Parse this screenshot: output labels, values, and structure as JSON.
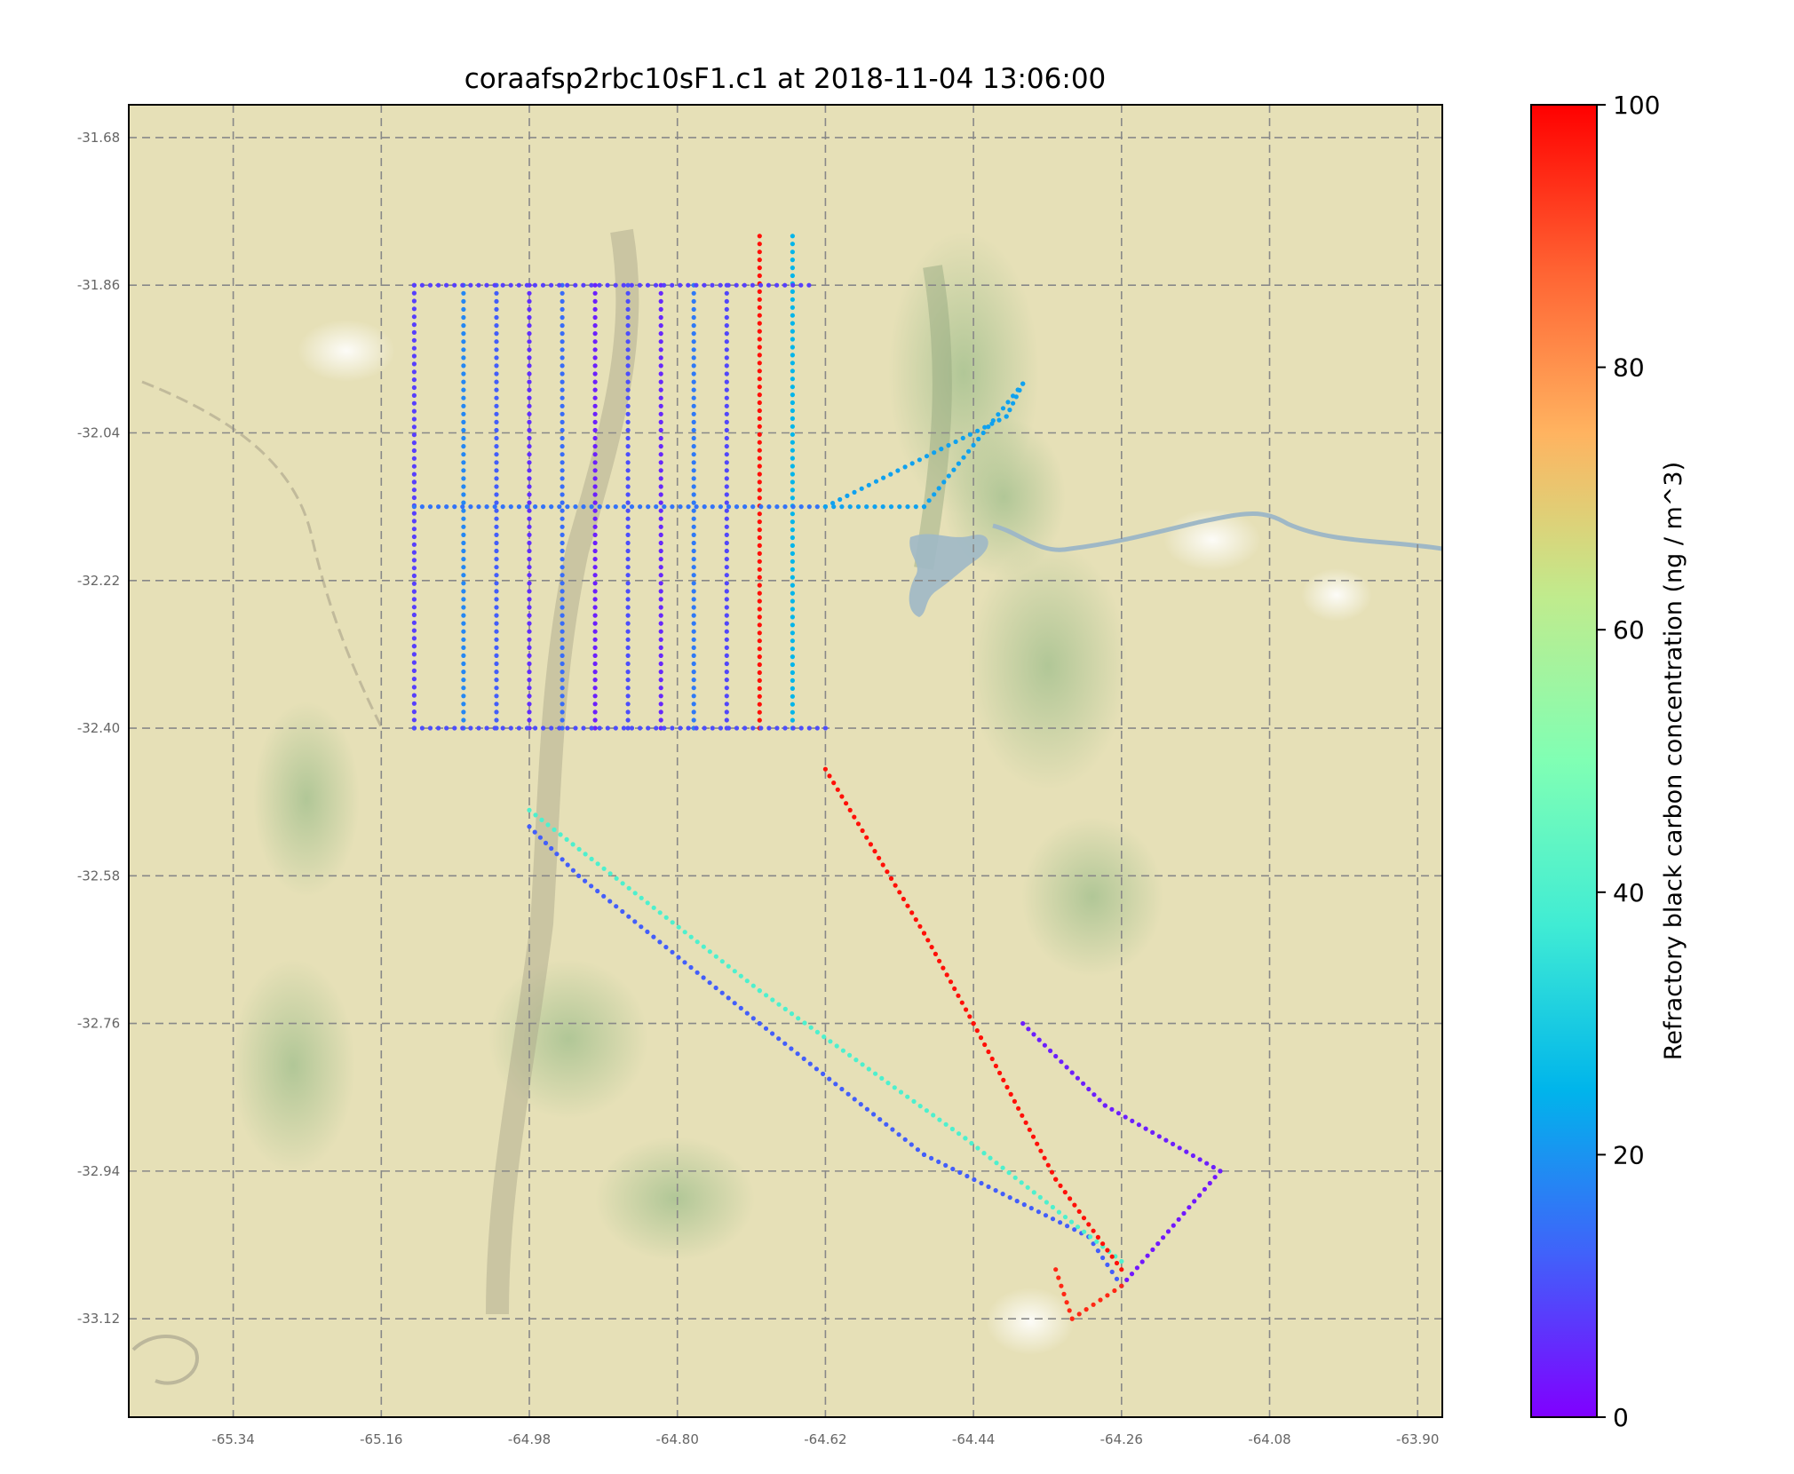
{
  "figure": {
    "title": "coraafsp2rbc10sF1.c1 at 2018-11-04 13:06:00"
  },
  "map": {
    "x_ticks": [
      "-65.34",
      "-65.16",
      "-64.98",
      "-64.80",
      "-64.62",
      "-64.44",
      "-64.26",
      "-64.08",
      "-63.90"
    ],
    "y_ticks": [
      "-31.68",
      "-31.86",
      "-32.04",
      "-32.22",
      "-32.40",
      "-32.58",
      "-32.76",
      "-32.94",
      "-33.12"
    ],
    "lon_range": [
      -65.467,
      -63.87
    ],
    "lat_range": [
      -31.64,
      -33.24
    ],
    "background": "terrain basemap with river and reservoir",
    "grid": "dashed gray"
  },
  "colorbar": {
    "label": "Refractory black carbon concentration (ng / m^3)",
    "min": 0,
    "max": 100,
    "ticks": [
      "100",
      "80",
      "60",
      "40",
      "20",
      "0"
    ],
    "colormap": "rainbow",
    "colors": [
      "#8000ff",
      "#4062fa",
      "#00b5eb",
      "#40ecd4",
      "#80ffb4",
      "#c0eb8d",
      "#ffb360",
      "#ff6232",
      "#ff0000"
    ]
  },
  "chart_data": {
    "type": "scatter",
    "title": "coraafsp2rbc10sF1.c1 at 2018-11-04 13:06:00",
    "xlabel": "",
    "ylabel": "",
    "xlim": [
      -65.467,
      -63.87
    ],
    "ylim": [
      -33.24,
      -31.64
    ],
    "colorbar_label": "Refractory black carbon concentration (ng / m^3)",
    "clim": [
      0,
      100
    ],
    "tracks": [
      {
        "lon": [
          -65.12,
          -65.12,
          -65.12,
          -65.12
        ],
        "lat": [
          -31.86,
          -32.1,
          -32.3,
          -32.4
        ],
        "c": 8
      },
      {
        "lon": [
          -65.06,
          -65.06
        ],
        "lat": [
          -31.86,
          -32.4
        ],
        "c": 18
      },
      {
        "lon": [
          -65.02,
          -65.02
        ],
        "lat": [
          -31.86,
          -32.4
        ],
        "c": 12
      },
      {
        "lon": [
          -64.98,
          -64.98
        ],
        "lat": [
          -31.86,
          -32.4
        ],
        "c": 6
      },
      {
        "lon": [
          -64.94,
          -64.94
        ],
        "lat": [
          -31.86,
          -32.4
        ],
        "c": 14
      },
      {
        "lon": [
          -64.9,
          -64.9
        ],
        "lat": [
          -31.86,
          -32.4
        ],
        "c": 4
      },
      {
        "lon": [
          -64.86,
          -64.86
        ],
        "lat": [
          -31.86,
          -32.4
        ],
        "c": 10
      },
      {
        "lon": [
          -64.82,
          -64.82
        ],
        "lat": [
          -31.86,
          -32.4
        ],
        "c": 5
      },
      {
        "lon": [
          -64.78,
          -64.78
        ],
        "lat": [
          -31.86,
          -32.4
        ],
        "c": 16
      },
      {
        "lon": [
          -64.74,
          -64.74
        ],
        "lat": [
          -31.86,
          -32.4
        ],
        "c": 9
      },
      {
        "lon": [
          -64.7,
          -64.7
        ],
        "lat": [
          -31.8,
          -32.4
        ],
        "c": 98
      },
      {
        "lon": [
          -64.66,
          -64.66
        ],
        "lat": [
          -31.8,
          -32.4
        ],
        "c": 25
      },
      {
        "lon": [
          -65.12,
          -64.64
        ],
        "lat": [
          -31.86,
          -31.86
        ],
        "c": 8
      },
      {
        "lon": [
          -65.12,
          -64.62
        ],
        "lat": [
          -32.13,
          -32.13
        ],
        "c": 15
      },
      {
        "lon": [
          -65.12,
          -64.62
        ],
        "lat": [
          -32.4,
          -32.4
        ],
        "c": 10
      },
      {
        "lon": [
          -64.62,
          -64.4,
          -64.38,
          -64.5,
          -64.62
        ],
        "lat": [
          -32.13,
          -32.02,
          -31.98,
          -32.13,
          -32.13
        ],
        "c": 22
      },
      {
        "lon": [
          -64.98,
          -64.92,
          -64.7,
          -64.5,
          -64.3,
          -64.26
        ],
        "lat": [
          -32.52,
          -32.58,
          -32.76,
          -32.92,
          -33.02,
          -33.08
        ],
        "c": 12
      },
      {
        "lon": [
          -64.98,
          -64.7,
          -64.45,
          -64.26
        ],
        "lat": [
          -32.5,
          -32.72,
          -32.9,
          -33.05
        ],
        "c": 40
      },
      {
        "lon": [
          -64.62,
          -64.5,
          -64.44,
          -64.34,
          -64.26
        ],
        "lat": [
          -32.45,
          -32.65,
          -32.76,
          -32.95,
          -33.06
        ],
        "c": 98
      },
      {
        "lon": [
          -64.26,
          -64.14
        ],
        "lat": [
          -33.08,
          -32.94
        ],
        "c": 3
      },
      {
        "lon": [
          -64.14,
          -64.28,
          -64.38
        ],
        "lat": [
          -32.94,
          -32.86,
          -32.76
        ],
        "c": 4
      },
      {
        "lon": [
          -64.26,
          -64.32,
          -64.34
        ],
        "lat": [
          -33.08,
          -33.12,
          -33.06
        ],
        "c": 95
      }
    ]
  }
}
